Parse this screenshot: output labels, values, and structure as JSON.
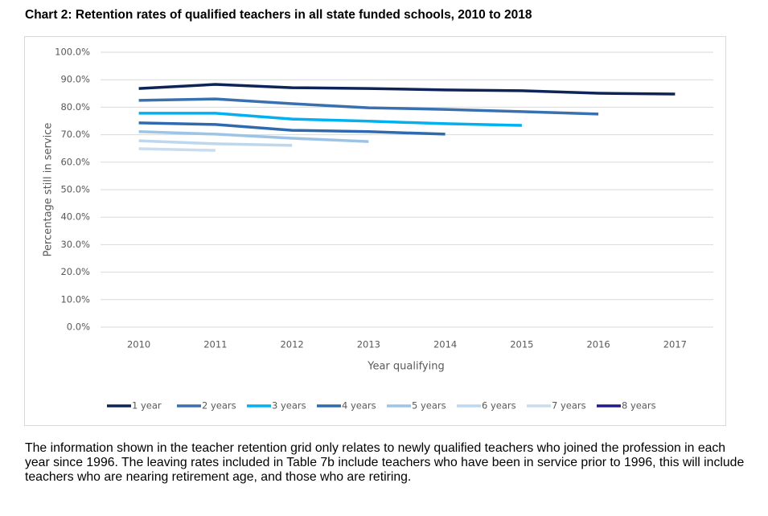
{
  "chart_data": {
    "type": "line",
    "title": "Chart 2: Retention rates of qualified teachers in all state funded schools, 2010 to 2018",
    "x_label": "Year qualifying",
    "y_label": "Percentage still in service",
    "categories": [
      "2010",
      "2011",
      "2012",
      "2013",
      "2014",
      "2015",
      "2016",
      "2017"
    ],
    "ylim": [
      0,
      100
    ],
    "yticks": [
      {
        "value": 0,
        "label": "0.0%"
      },
      {
        "value": 10,
        "label": "10.0%"
      },
      {
        "value": 20,
        "label": "20.0%"
      },
      {
        "value": 30,
        "label": "30.0%"
      },
      {
        "value": 40,
        "label": "40.0%"
      },
      {
        "value": 50,
        "label": "50.0%"
      },
      {
        "value": 60,
        "label": "60.0%"
      },
      {
        "value": 70,
        "label": "70.0%"
      },
      {
        "value": 80,
        "label": "80.0%"
      },
      {
        "value": 90,
        "label": "90.0%"
      },
      {
        "value": 100,
        "label": "100.0%"
      }
    ],
    "grid": true,
    "legend": "bottom",
    "series": [
      {
        "name": "1 year",
        "color": "#0c2456",
        "values": [
          86.8,
          88.3,
          87.1,
          86.8,
          86.3,
          86.0,
          85.1,
          84.8
        ]
      },
      {
        "name": "2 years",
        "color": "#3a6fb0",
        "values": [
          82.5,
          83.0,
          81.3,
          79.8,
          79.2,
          78.4,
          77.5,
          null
        ]
      },
      {
        "name": "3 years",
        "color": "#00b0f0",
        "values": [
          77.8,
          77.8,
          75.7,
          74.9,
          74.0,
          73.4,
          null,
          null
        ]
      },
      {
        "name": "4 years",
        "color": "#2e6aad",
        "values": [
          74.3,
          73.7,
          71.6,
          71.1,
          70.2,
          null,
          null,
          null
        ]
      },
      {
        "name": "5 years",
        "color": "#9dc3e6",
        "values": [
          71.1,
          70.2,
          68.7,
          67.5,
          null,
          null,
          null,
          null
        ]
      },
      {
        "name": "6 years",
        "color": "#bdd7ee",
        "values": [
          67.8,
          66.7,
          66.1,
          null,
          null,
          null,
          null,
          null
        ]
      },
      {
        "name": "7 years",
        "color": "#cadcf0",
        "values": [
          64.9,
          64.3,
          null,
          null,
          null,
          null,
          null,
          null
        ]
      },
      {
        "name": "8 years",
        "color": "#221a8c",
        "values": [
          null,
          null,
          null,
          null,
          null,
          null,
          null,
          null
        ]
      }
    ]
  },
  "note": "The information shown in the teacher retention grid only relates to newly qualified teachers who joined the profession in each year since 1996. The leaving rates included in Table 7b include teachers who have been in service prior to 1996, this will include teachers who are nearing retirement age, and those who are retiring."
}
